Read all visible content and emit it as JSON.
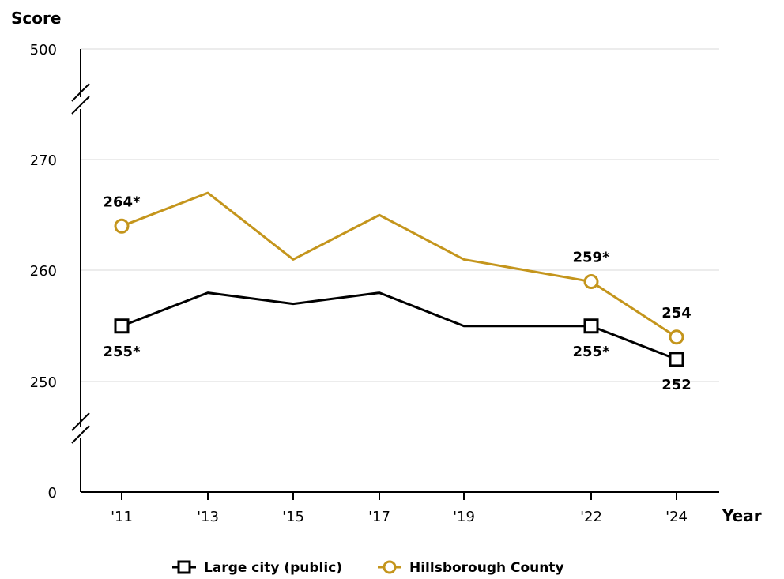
{
  "chart_data": {
    "type": "line",
    "ylabel": "Score",
    "xlabel": "Year",
    "x": [
      "'11",
      "'13",
      "'15",
      "'17",
      "'19",
      "'22",
      "'24"
    ],
    "y_ticks": [
      "0",
      "250",
      "260",
      "270",
      "500"
    ],
    "y_axis_broken": true,
    "ylim": [
      250,
      270
    ],
    "grid": true,
    "legend_position": "bottom",
    "series": [
      {
        "name": "Large city (public)",
        "marker": "square",
        "color": "#000000",
        "values": [
          255,
          258,
          257,
          258,
          255,
          255,
          252
        ],
        "labels": [
          {
            "index": 0,
            "text": "255*"
          },
          {
            "index": 5,
            "text": "255*"
          },
          {
            "index": 6,
            "text": "252"
          }
        ]
      },
      {
        "name": "Hillsborough County",
        "marker": "circle",
        "color": "#c4951c",
        "values": [
          264,
          267,
          261,
          265,
          261,
          259,
          254
        ],
        "labels": [
          {
            "index": 0,
            "text": "264*"
          },
          {
            "index": 5,
            "text": "259*"
          },
          {
            "index": 6,
            "text": "254"
          }
        ]
      }
    ]
  }
}
